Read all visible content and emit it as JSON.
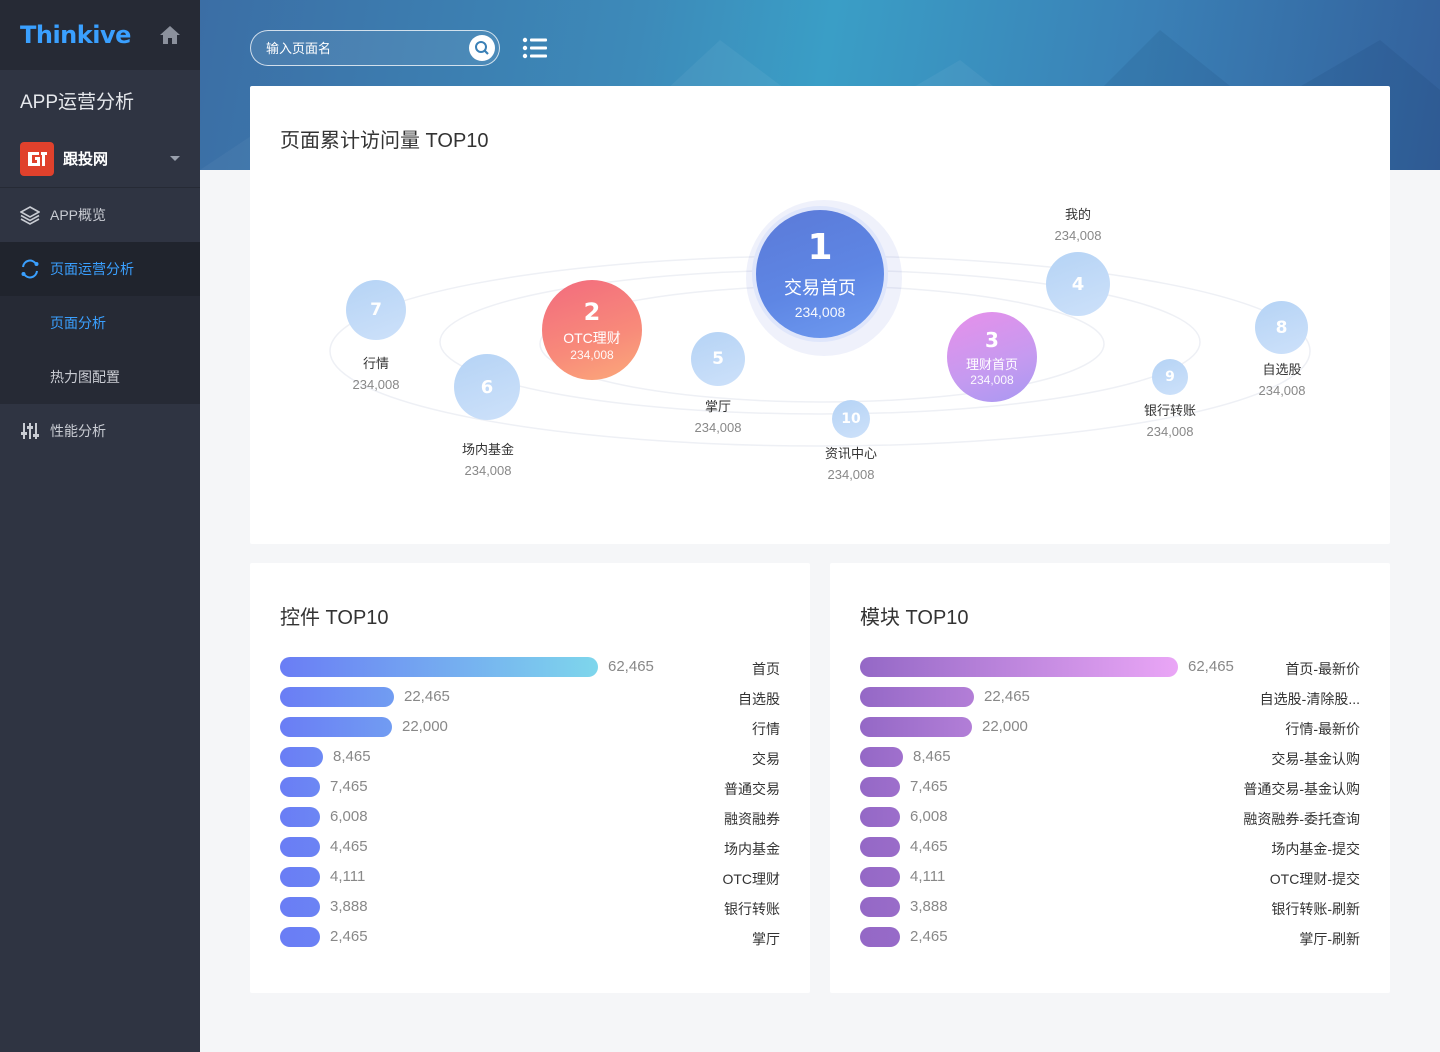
{
  "sidebar": {
    "logo": "Thinkive",
    "app_title": "APP运营分析",
    "app_name": "跟投网",
    "nav": {
      "overview": "APP概览",
      "page_ops": "页面运营分析",
      "page_analysis": "页面分析",
      "heatmap": "热力图配置",
      "performance": "性能分析"
    }
  },
  "header": {
    "search_placeholder": "输入页面名"
  },
  "colors": {
    "accent": "#3aa0ff",
    "sidebar_bg": "#2f3442",
    "ctrl_bar_start": "#6a7df5",
    "ctrl_bar_end": "#7ed6ec",
    "mod_bar_start": "#9468c6",
    "mod_bar_end": "#eaa6f6"
  },
  "top10": {
    "title": "页面累计访问量 TOP10",
    "items": [
      {
        "rank": "1",
        "name": "交易首页",
        "value": "234,008"
      },
      {
        "rank": "2",
        "name": "OTC理财",
        "value": "234,008"
      },
      {
        "rank": "3",
        "name": "理财首页",
        "value": "234,008"
      },
      {
        "rank": "4",
        "name": "我的",
        "value": "234,008"
      },
      {
        "rank": "5",
        "name": "掌厅",
        "value": "234,008"
      },
      {
        "rank": "6",
        "name": "场内基金",
        "value": "234,008"
      },
      {
        "rank": "7",
        "name": "行情",
        "value": "234,008"
      },
      {
        "rank": "8",
        "name": "自选股",
        "value": "234,008"
      },
      {
        "rank": "9",
        "name": "银行转账",
        "value": "234,008"
      },
      {
        "rank": "10",
        "name": "资讯中心",
        "value": "234,008"
      }
    ]
  },
  "controls": {
    "title": "控件 TOP10",
    "max": 62465,
    "rows": [
      {
        "label": "首页",
        "value": 62465,
        "display": "62,465"
      },
      {
        "label": "自选股",
        "value": 22465,
        "display": "22,465"
      },
      {
        "label": "行情",
        "value": 22000,
        "display": "22,000"
      },
      {
        "label": "交易",
        "value": 8465,
        "display": "8,465"
      },
      {
        "label": "普通交易",
        "value": 7465,
        "display": "7,465"
      },
      {
        "label": "融资融券",
        "value": 6008,
        "display": "6,008"
      },
      {
        "label": "场内基金",
        "value": 4465,
        "display": "4,465"
      },
      {
        "label": "OTC理财",
        "value": 4111,
        "display": "4,111"
      },
      {
        "label": "银行转账",
        "value": 3888,
        "display": "3,888"
      },
      {
        "label": "掌厅",
        "value": 2465,
        "display": "2,465"
      }
    ]
  },
  "modules": {
    "title": "模块 TOP10",
    "max": 62465,
    "rows": [
      {
        "label": "首页-最新价",
        "value": 62465,
        "display": "62,465"
      },
      {
        "label": "自选股-清除股...",
        "value": 22465,
        "display": "22,465"
      },
      {
        "label": "行情-最新价",
        "value": 22000,
        "display": "22,000"
      },
      {
        "label": "交易-基金认购",
        "value": 8465,
        "display": "8,465"
      },
      {
        "label": "普通交易-基金认购",
        "value": 7465,
        "display": "7,465"
      },
      {
        "label": "融资融券-委托查询",
        "value": 6008,
        "display": "6,008"
      },
      {
        "label": "场内基金-提交",
        "value": 4465,
        "display": "4,465"
      },
      {
        "label": "OTC理财-提交",
        "value": 4111,
        "display": "4,111"
      },
      {
        "label": "银行转账-刷新",
        "value": 3888,
        "display": "3,888"
      },
      {
        "label": "掌厅-刷新",
        "value": 2465,
        "display": "2,465"
      }
    ]
  }
}
